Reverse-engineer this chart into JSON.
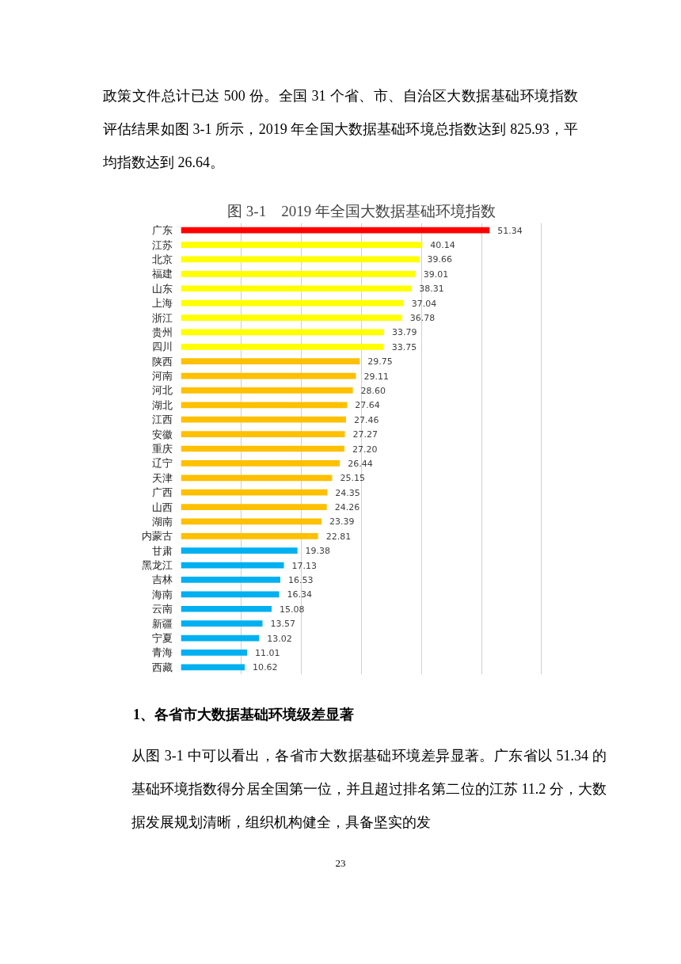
{
  "chart_data": {
    "type": "bar",
    "orientation": "horizontal",
    "title": "图 3-1　2019 年全国大数据基础环境指数",
    "categories": [
      "广东",
      "江苏",
      "北京",
      "福建",
      "山东",
      "上海",
      "浙江",
      "贵州",
      "四川",
      "陕西",
      "河南",
      "河北",
      "湖北",
      "江西",
      "安徽",
      "重庆",
      "辽宁",
      "天津",
      "广西",
      "山西",
      "湖南",
      "内蒙古",
      "甘肃",
      "黑龙江",
      "吉林",
      "海南",
      "云南",
      "新疆",
      "宁夏",
      "青海",
      "西藏"
    ],
    "values": [
      51.34,
      40.14,
      39.66,
      39.01,
      38.31,
      37.04,
      36.78,
      33.79,
      33.75,
      29.75,
      29.11,
      28.6,
      27.64,
      27.46,
      27.27,
      27.2,
      26.44,
      25.15,
      24.35,
      24.26,
      23.39,
      22.81,
      19.38,
      17.13,
      16.53,
      16.34,
      15.08,
      13.57,
      13.02,
      11.01,
      10.62
    ],
    "colors": [
      "#ff0000",
      "#ffff00",
      "#ffff00",
      "#ffff00",
      "#ffff00",
      "#ffff00",
      "#ffff00",
      "#ffff00",
      "#ffff00",
      "#ffc000",
      "#ffc000",
      "#ffc000",
      "#ffc000",
      "#ffc000",
      "#ffc000",
      "#ffc000",
      "#ffc000",
      "#ffc000",
      "#ffc000",
      "#ffc000",
      "#ffc000",
      "#ffc000",
      "#00b0f0",
      "#00b0f0",
      "#00b0f0",
      "#00b0f0",
      "#00b0f0",
      "#00b0f0",
      "#00b0f0",
      "#00b0f0",
      "#00b0f0"
    ],
    "value_labels": [
      "51.34",
      "40.14",
      "39.66",
      "39.01",
      "38.31",
      "37.04",
      "36.78",
      "33.79",
      "33.75",
      "29.75",
      "29.11",
      "28.60",
      "27.64",
      "27.46",
      "27.27",
      "27.20",
      "26.44",
      "25.15",
      "24.35",
      "24.26",
      "23.39",
      "22.81",
      "19.38",
      "17.13",
      "16.53",
      "16.34",
      "15.08",
      "13.57",
      "13.02",
      "11.01",
      "10.62"
    ],
    "grid": "x",
    "tick_labels": "y",
    "annotations": [
      "政策文件总计已达 500 份。全国 31 个省、市、自治区大数据基础环境指数评估结果如图 3-1 所示，2019 年全国大数据基础环境总指数达到 825.93，平均指数达到 26.64。",
      "1、各省市大数据基础环境级差显著",
      "从图 3-1 中可以看出，各省市大数据基础环境差异显著。广东省以 51.34 的基础环境指数得分居全国第一位，并且超过排名第二位的江苏 11.2 分，大数据发展规划清晰，组织机构健全，具备坚实的发",
      "23"
    ]
  }
}
